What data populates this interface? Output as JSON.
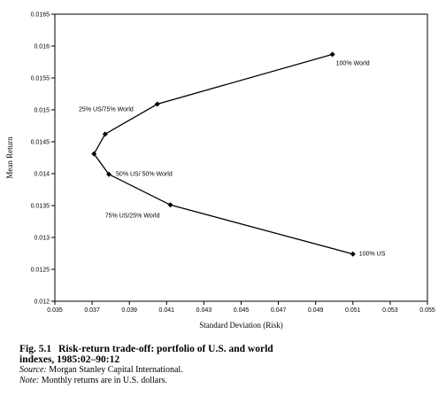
{
  "chart_data": {
    "type": "line",
    "xlabel": "Standard Deviation (Risk)",
    "ylabel": "Mean Return",
    "xlim": [
      0.035,
      0.055
    ],
    "ylim": [
      0.012,
      0.0165
    ],
    "x_ticks": [
      "0.035",
      "0.037",
      "0.039",
      "0.041",
      "0.043",
      "0.045",
      "0.047",
      "0.049",
      "0.051",
      "0.053",
      "0.055"
    ],
    "y_ticks": [
      "0.012",
      "0.0125",
      "0.013",
      "0.0135",
      "0.014",
      "0.0145",
      "0.015",
      "0.0155",
      "0.016",
      "0.0165"
    ],
    "series": [
      {
        "points": [
          {
            "x": 0.0499,
            "y": 0.01587
          },
          {
            "x": 0.0405,
            "y": 0.01509
          },
          {
            "x": 0.0377,
            "y": 0.01462
          },
          {
            "x": 0.0371,
            "y": 0.01431
          },
          {
            "x": 0.0379,
            "y": 0.01399
          },
          {
            "x": 0.0412,
            "y": 0.01351
          },
          {
            "x": 0.051,
            "y": 0.01274
          }
        ]
      }
    ],
    "annotations": [
      {
        "text": "100% World",
        "x": 0.0499,
        "y": 0.01587
      },
      {
        "text": "25% US/75% World",
        "x": 0.0405,
        "y": 0.01509
      },
      {
        "text": "50% US/ 50% World",
        "x": 0.0379,
        "y": 0.01399
      },
      {
        "text": "75% US/25% World",
        "x": 0.0412,
        "y": 0.01351
      },
      {
        "text": "100% US",
        "x": 0.051,
        "y": 0.01274
      }
    ],
    "grid": false,
    "legend": "none"
  },
  "caption": {
    "fig_label": "Fig. 5.1",
    "title_line1": "Risk-return trade-off: portfolio of U.S. and world",
    "title_line2": "indexes, 1985:02–90:12",
    "source_label": "Source:",
    "source_text": " Morgan Stanley Capital International.",
    "note_label": "Note:",
    "note_text": " Monthly returns are in U.S. dollars."
  }
}
